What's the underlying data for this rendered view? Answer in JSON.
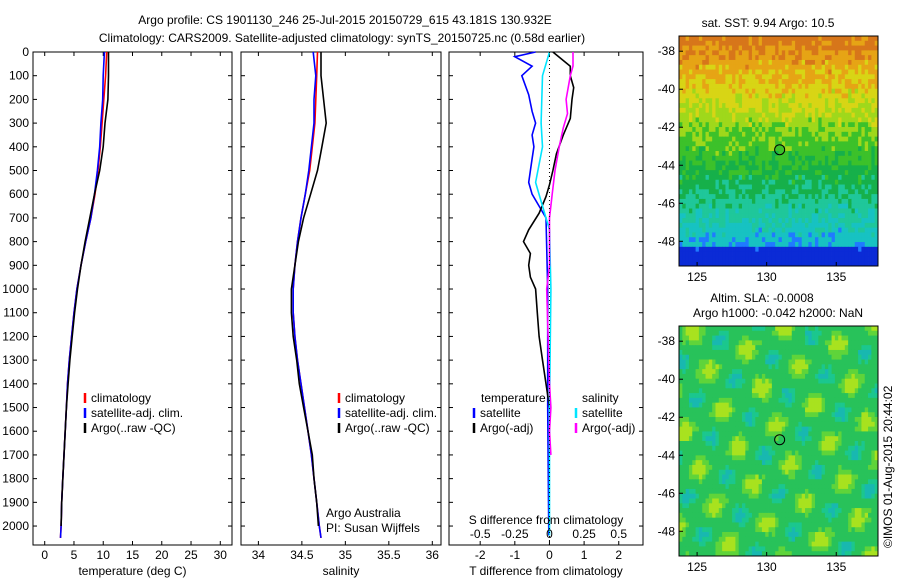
{
  "header": {
    "line1": "Argo profile: CS 1901130_246 25-Jul-2015 20150729_615 43.181S 130.932E",
    "line2": "Climatology: CARS2009. Satellite-adjusted climatology: synTS_20150725.nc (0.58d earlier)"
  },
  "colors": {
    "climatology": "#ff0000",
    "satellite": "#0000ff",
    "argo": "#000000",
    "sat_salinity": "#00e5ff",
    "argo_salinity_adj": "#ff00ff"
  },
  "credits": {
    "org": "Argo Australia",
    "pi": "PI: Susan Wijffels",
    "stamp": "©IMOS 01-Aug-2015 20:44:02"
  },
  "chart_data": [
    {
      "id": "temperature",
      "type": "line",
      "xlabel": "temperature (deg C)",
      "xlim": [
        -2,
        32
      ],
      "xticks": [
        0,
        5,
        10,
        15,
        20,
        25,
        30
      ],
      "ylim": [
        2080,
        0
      ],
      "yticks": [
        0,
        100,
        200,
        300,
        400,
        500,
        600,
        700,
        800,
        900,
        1000,
        1100,
        1200,
        1300,
        1400,
        1500,
        1600,
        1700,
        1800,
        1900,
        2000
      ],
      "legend": [
        "climatology",
        "satellite-adj. clim.",
        "Argo(..raw -QC)"
      ],
      "series": [
        {
          "name": "climatology",
          "color": "#ff0000",
          "points": [
            [
              10.6,
              0
            ],
            [
              10.4,
              100
            ],
            [
              10.1,
              200
            ],
            [
              9.8,
              300
            ],
            [
              9.5,
              400
            ],
            [
              9.1,
              500
            ],
            [
              8.6,
              600
            ],
            [
              7.9,
              700
            ],
            [
              7.0,
              800
            ],
            [
              6.2,
              900
            ],
            [
              5.5,
              1000
            ],
            [
              5.0,
              1100
            ],
            [
              4.6,
              1200
            ],
            [
              4.2,
              1300
            ],
            [
              3.9,
              1400
            ],
            [
              3.7,
              1500
            ],
            [
              3.5,
              1600
            ],
            [
              3.3,
              1700
            ],
            [
              3.1,
              1800
            ],
            [
              2.9,
              1900
            ],
            [
              2.8,
              2000
            ],
            [
              2.7,
              2050
            ]
          ]
        },
        {
          "name": "satellite-adj. clim.",
          "color": "#0000ff",
          "points": [
            [
              10.2,
              0
            ],
            [
              10.0,
              100
            ],
            [
              9.9,
              200
            ],
            [
              9.6,
              300
            ],
            [
              9.4,
              400
            ],
            [
              9.0,
              500
            ],
            [
              8.5,
              600
            ],
            [
              7.9,
              700
            ],
            [
              7.0,
              800
            ],
            [
              6.2,
              900
            ],
            [
              5.5,
              1000
            ],
            [
              5.0,
              1100
            ],
            [
              4.6,
              1200
            ],
            [
              4.2,
              1300
            ],
            [
              3.9,
              1400
            ],
            [
              3.7,
              1500
            ],
            [
              3.5,
              1600
            ],
            [
              3.3,
              1700
            ],
            [
              3.1,
              1800
            ],
            [
              2.9,
              1900
            ],
            [
              2.8,
              2000
            ],
            [
              2.7,
              2050
            ]
          ]
        },
        {
          "name": "Argo(..raw -QC)",
          "color": "#000000",
          "points": [
            [
              10.9,
              0
            ],
            [
              10.9,
              100
            ],
            [
              10.8,
              200
            ],
            [
              10.3,
              300
            ],
            [
              10.0,
              400
            ],
            [
              9.4,
              500
            ],
            [
              8.5,
              600
            ],
            [
              7.7,
              700
            ],
            [
              6.9,
              800
            ],
            [
              6.2,
              900
            ],
            [
              5.6,
              1000
            ],
            [
              5.1,
              1100
            ],
            [
              4.7,
              1200
            ],
            [
              4.3,
              1300
            ],
            [
              4.0,
              1400
            ],
            [
              3.7,
              1500
            ],
            [
              3.5,
              1600
            ],
            [
              3.3,
              1700
            ],
            [
              3.1,
              1800
            ],
            [
              2.9,
              1900
            ],
            [
              2.8,
              2000
            ]
          ]
        }
      ]
    },
    {
      "id": "salinity",
      "type": "line",
      "xlabel": "salinity",
      "xlim": [
        33.8,
        36.1
      ],
      "xticks": [
        34,
        34.5,
        35,
        35.5,
        36
      ],
      "ylim": [
        2080,
        0
      ],
      "legend": [
        "climatology",
        "satellite-adj. clim.",
        "Argo(..raw -QC)"
      ],
      "series": [
        {
          "name": "climatology",
          "color": "#ff0000",
          "points": [
            [
              34.68,
              0
            ],
            [
              34.67,
              100
            ],
            [
              34.66,
              200
            ],
            [
              34.65,
              300
            ],
            [
              34.62,
              400
            ],
            [
              34.59,
              500
            ],
            [
              34.54,
              600
            ],
            [
              34.49,
              700
            ],
            [
              34.45,
              800
            ],
            [
              34.42,
              900
            ],
            [
              34.4,
              1000
            ],
            [
              34.4,
              1100
            ],
            [
              34.42,
              1200
            ],
            [
              34.45,
              1300
            ],
            [
              34.49,
              1400
            ],
            [
              34.53,
              1500
            ],
            [
              34.57,
              1600
            ],
            [
              34.61,
              1700
            ],
            [
              34.64,
              1800
            ],
            [
              34.67,
              1900
            ],
            [
              34.7,
              2000
            ],
            [
              34.72,
              2050
            ]
          ]
        },
        {
          "name": "satellite-adj. clim.",
          "color": "#0000ff",
          "points": [
            [
              34.63,
              0
            ],
            [
              34.66,
              100
            ],
            [
              34.64,
              200
            ],
            [
              34.64,
              300
            ],
            [
              34.61,
              400
            ],
            [
              34.58,
              500
            ],
            [
              34.54,
              600
            ],
            [
              34.49,
              700
            ],
            [
              34.45,
              800
            ],
            [
              34.42,
              900
            ],
            [
              34.4,
              1000
            ],
            [
              34.4,
              1100
            ],
            [
              34.42,
              1200
            ],
            [
              34.45,
              1300
            ],
            [
              34.49,
              1400
            ],
            [
              34.53,
              1500
            ],
            [
              34.57,
              1600
            ],
            [
              34.61,
              1700
            ],
            [
              34.64,
              1800
            ],
            [
              34.67,
              1900
            ],
            [
              34.7,
              2000
            ],
            [
              34.72,
              2050
            ]
          ]
        },
        {
          "name": "Argo(..raw -QC)",
          "color": "#000000",
          "points": [
            [
              34.72,
              0
            ],
            [
              34.72,
              100
            ],
            [
              34.75,
              200
            ],
            [
              34.78,
              300
            ],
            [
              34.73,
              400
            ],
            [
              34.68,
              500
            ],
            [
              34.6,
              600
            ],
            [
              34.52,
              700
            ],
            [
              34.46,
              800
            ],
            [
              34.42,
              900
            ],
            [
              34.38,
              1000
            ],
            [
              34.38,
              1100
            ],
            [
              34.4,
              1200
            ],
            [
              34.44,
              1300
            ],
            [
              34.47,
              1400
            ],
            [
              34.52,
              1500
            ],
            [
              34.57,
              1600
            ],
            [
              34.62,
              1700
            ],
            [
              34.64,
              1800
            ],
            [
              34.67,
              1900
            ],
            [
              34.69,
              2000
            ]
          ]
        }
      ]
    },
    {
      "id": "difference",
      "type": "line",
      "xlabel": "T difference from climatology",
      "xlabel_top": "S difference from climatology",
      "xlim": [
        -2.9,
        2.7
      ],
      "xticks": [
        -2,
        -1,
        0,
        1,
        2
      ],
      "xticks_top_labels": [
        "-0.5",
        "-0.25",
        "0",
        "0.25",
        "0.5"
      ],
      "ylim": [
        2080,
        0
      ],
      "legend_left_title": "temperature",
      "legend_right_title": "salinity",
      "legend": [
        "satellite",
        "Argo(-adj)",
        "satellite",
        "Argo(-adj)"
      ],
      "series": [
        {
          "name": "satellite",
          "group": "temperature",
          "color": "#0000ff",
          "points": [
            [
              -0.4,
              0
            ],
            [
              -1.0,
              20
            ],
            [
              -0.5,
              60
            ],
            [
              -0.8,
              100
            ],
            [
              -0.6,
              180
            ],
            [
              -0.5,
              250
            ],
            [
              -0.4,
              300
            ],
            [
              -0.5,
              350
            ],
            [
              -0.45,
              400
            ],
            [
              -0.5,
              450
            ],
            [
              -0.55,
              500
            ],
            [
              -0.6,
              550
            ],
            [
              -0.5,
              600
            ],
            [
              -0.3,
              650
            ],
            [
              -0.1,
              700
            ],
            [
              -0.05,
              1000
            ],
            [
              -0.05,
              1500
            ],
            [
              -0.02,
              2040
            ]
          ]
        },
        {
          "name": "Argo(-adj)",
          "group": "temperature",
          "color": "#000000",
          "points": [
            [
              0.1,
              0
            ],
            [
              0.6,
              60
            ],
            [
              0.6,
              100
            ],
            [
              0.7,
              150
            ],
            [
              0.65,
              200
            ],
            [
              0.6,
              280
            ],
            [
              0.4,
              350
            ],
            [
              0.2,
              430
            ],
            [
              0.1,
              500
            ],
            [
              0.0,
              560
            ],
            [
              -0.1,
              610
            ],
            [
              -0.3,
              680
            ],
            [
              -0.6,
              750
            ],
            [
              -0.75,
              800
            ],
            [
              -0.55,
              850
            ],
            [
              -0.6,
              900
            ],
            [
              -0.55,
              950
            ],
            [
              -0.4,
              1000
            ],
            [
              -0.35,
              1100
            ],
            [
              -0.3,
              1200
            ],
            [
              -0.2,
              1300
            ],
            [
              -0.1,
              1400
            ],
            [
              0.0,
              1500
            ]
          ]
        },
        {
          "name": "satellite",
          "group": "salinity",
          "color": "#00e5ff",
          "points": [
            [
              0.0,
              0
            ],
            [
              -0.05,
              100
            ],
            [
              -0.06,
              300
            ],
            [
              -0.05,
              400
            ],
            [
              -0.1,
              550
            ],
            [
              -0.05,
              650
            ],
            [
              0.0,
              750
            ],
            [
              0.01,
              1000
            ],
            [
              0.0,
              1500
            ],
            [
              0.0,
              2040
            ]
          ]
        },
        {
          "name": "Argo(-adj)",
          "group": "salinity",
          "color": "#ff00ff",
          "points": [
            [
              0.17,
              0
            ],
            [
              0.17,
              60
            ],
            [
              0.15,
              100
            ],
            [
              0.12,
              200
            ],
            [
              0.13,
              260
            ],
            [
              0.1,
              320
            ],
            [
              0.07,
              400
            ],
            [
              0.04,
              500
            ],
            [
              0.02,
              600
            ],
            [
              0.0,
              700
            ],
            [
              0.0,
              900
            ],
            [
              -0.02,
              1000
            ],
            [
              -0.01,
              1200
            ],
            [
              0.0,
              1400
            ],
            [
              0.01,
              1500
            ],
            [
              0.0,
              1600
            ],
            [
              0.01,
              1700
            ]
          ]
        }
      ]
    },
    {
      "id": "sst-map",
      "type": "heatmap",
      "title": "sat. SST: 9.94  Argo: 10.5",
      "xticks": [
        125,
        130,
        135
      ],
      "yticks": [
        -38,
        -40,
        -42,
        -44,
        -46,
        -48
      ],
      "xlim": [
        123.7,
        138
      ],
      "ylim": [
        -49.3,
        -37.2
      ],
      "marker": {
        "lon": 130.932,
        "lat": -43.181
      }
    },
    {
      "id": "sla-map",
      "type": "heatmap",
      "title_line1": "Altim. SLA: -0.0008",
      "title_line2": "Argo h1000: -0.042  h2000: NaN",
      "xticks": [
        125,
        130,
        135
      ],
      "yticks": [
        -38,
        -40,
        -42,
        -44,
        -46,
        -48
      ],
      "xlim": [
        123.7,
        138
      ],
      "ylim": [
        -49.3,
        -37.2
      ],
      "marker": {
        "lon": 130.932,
        "lat": -43.181
      }
    }
  ]
}
